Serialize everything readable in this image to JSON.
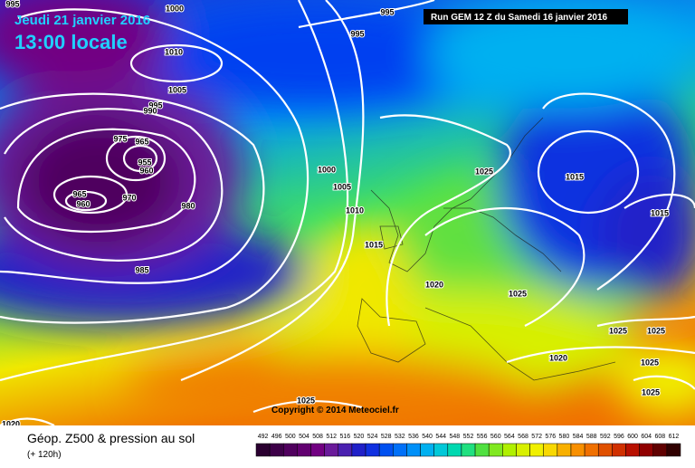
{
  "header": {
    "date": "Jeudi 21 janvier 2016",
    "time": "13:00 locale",
    "run": "Run GEM 12 Z du Samedi 16 janvier 2016"
  },
  "map": {
    "copyright": "Copyright © 2014 Meteociel.fr",
    "isobar_labels": [
      "995",
      "995",
      "1000",
      "995",
      "1010",
      "1005",
      "995",
      "990",
      "975",
      "965",
      "955",
      "960",
      "965",
      "960",
      "970",
      "980",
      "985",
      "1000",
      "1005",
      "1010",
      "1015",
      "1020",
      "1025",
      "1015",
      "1015",
      "1025",
      "1025",
      "1025",
      "1020",
      "1025",
      "1025",
      "1025",
      "1020"
    ]
  },
  "footer": {
    "title": "Géop. Z500 & pression au sol",
    "subtitle": "(+ 120h)"
  },
  "scale": [
    {
      "value": 492,
      "color": "#2a0030"
    },
    {
      "value": 496,
      "color": "#3d0048"
    },
    {
      "value": 500,
      "color": "#50005e"
    },
    {
      "value": 504,
      "color": "#620070"
    },
    {
      "value": 508,
      "color": "#720082"
    },
    {
      "value": 512,
      "color": "#6a1a9a"
    },
    {
      "value": 516,
      "color": "#4a20b0"
    },
    {
      "value": 520,
      "color": "#2020c8"
    },
    {
      "value": 524,
      "color": "#1030e0"
    },
    {
      "value": 528,
      "color": "#0050f0"
    },
    {
      "value": 532,
      "color": "#0070f8"
    },
    {
      "value": 536,
      "color": "#0090f8"
    },
    {
      "value": 540,
      "color": "#00b0f0"
    },
    {
      "value": 544,
      "color": "#00c8d8"
    },
    {
      "value": 548,
      "color": "#00d8b0"
    },
    {
      "value": 552,
      "color": "#20e080"
    },
    {
      "value": 556,
      "color": "#50e040"
    },
    {
      "value": 560,
      "color": "#80e820"
    },
    {
      "value": 564,
      "color": "#b0f000"
    },
    {
      "value": 568,
      "color": "#d8f000"
    },
    {
      "value": 572,
      "color": "#f0f000"
    },
    {
      "value": 576,
      "color": "#f8d800"
    },
    {
      "value": 580,
      "color": "#f8b000"
    },
    {
      "value": 584,
      "color": "#f89000"
    },
    {
      "value": 588,
      "color": "#f07000"
    },
    {
      "value": 592,
      "color": "#e05000"
    },
    {
      "value": 596,
      "color": "#d03000"
    },
    {
      "value": 600,
      "color": "#b81000"
    },
    {
      "value": 604,
      "color": "#900000"
    },
    {
      "value": 608,
      "color": "#600000"
    },
    {
      "value": 612,
      "color": "#300000"
    }
  ]
}
